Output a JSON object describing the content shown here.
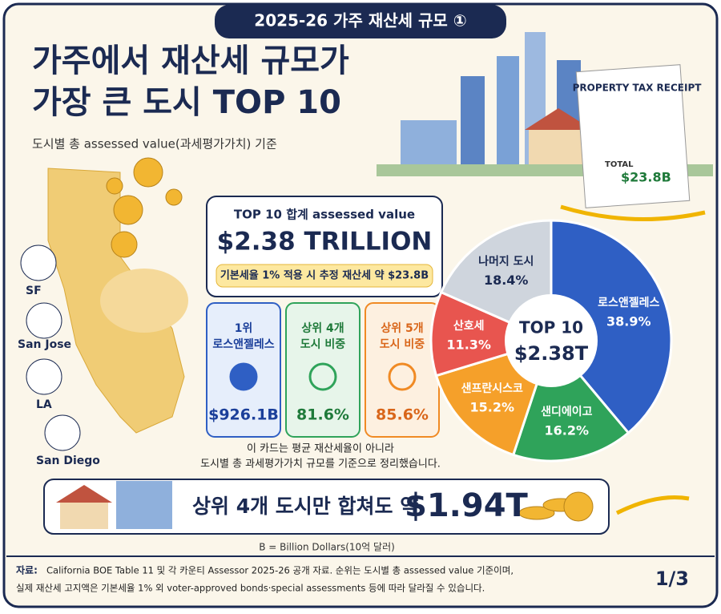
{
  "header": {
    "badge": "2025-26 가주 재산세 규모 ①",
    "title_lines": [
      "가주에서 재산세 규모가",
      "가장 큰 도시 TOP 10"
    ],
    "subtitle": "도시별 총 assessed value(과세평가가치) 기준"
  },
  "receipt": {
    "title": "PROPERTY TAX RECEIPT",
    "total_label": "TOTAL",
    "total": "$23.8B"
  },
  "map_labels": [
    "SF",
    "San Jose",
    "LA",
    "San Diego"
  ],
  "summary": {
    "label": "TOP 10 합계 assessed value",
    "value": "$2.38 TRILLION",
    "note": "기본세율 1% 적용 시 추정 재산세 약 $23.8B"
  },
  "cards": [
    {
      "title": "1위 로스앤젤레스",
      "value": "$926.1B"
    },
    {
      "title": "상위 4개 도시 비중",
      "value": "81.6%"
    },
    {
      "title": "상위 5개 도시 비중",
      "value": "85.6%"
    }
  ],
  "card_note": [
    "이 카드는 평균 재산세율이 아니라",
    "도시별 총 과세평가가치 규모를 기준으로 정리했습니다."
  ],
  "banner": {
    "text": "상위 4개 도시만 합쳐도 약",
    "value": "$1.94T"
  },
  "unit_note": "B = Billion Dollars(10억 달러)",
  "footer": {
    "source_label": "자료:",
    "lines": [
      "California BOE Table 11 및 각 카운티 Assessor 2025-26 공개 자료. 순위는 도시별 총 assessed value 기준이며,",
      "실제 재산세 고지액은 기본세율 1% 외 voter-approved bonds·special assessments 등에 따라 달라질 수 있습니다."
    ],
    "page": "1/3"
  },
  "chart_data": {
    "type": "pie",
    "donut": true,
    "center_title": "TOP 10",
    "center_value": "$2.38T",
    "categories": [
      "로스앤젤레스",
      "샌디에이고",
      "샌프란시스코",
      "산호세",
      "나머지 도시"
    ],
    "values": [
      38.9,
      16.2,
      15.2,
      11.3,
      18.4
    ],
    "value_labels": [
      "38.9%",
      "16.2%",
      "15.2%",
      "11.3%",
      "18.4%"
    ],
    "colors": [
      "#2f5fc4",
      "#2fa35a",
      "#f5a02a",
      "#e8554f",
      "#cfd5dd"
    ]
  }
}
